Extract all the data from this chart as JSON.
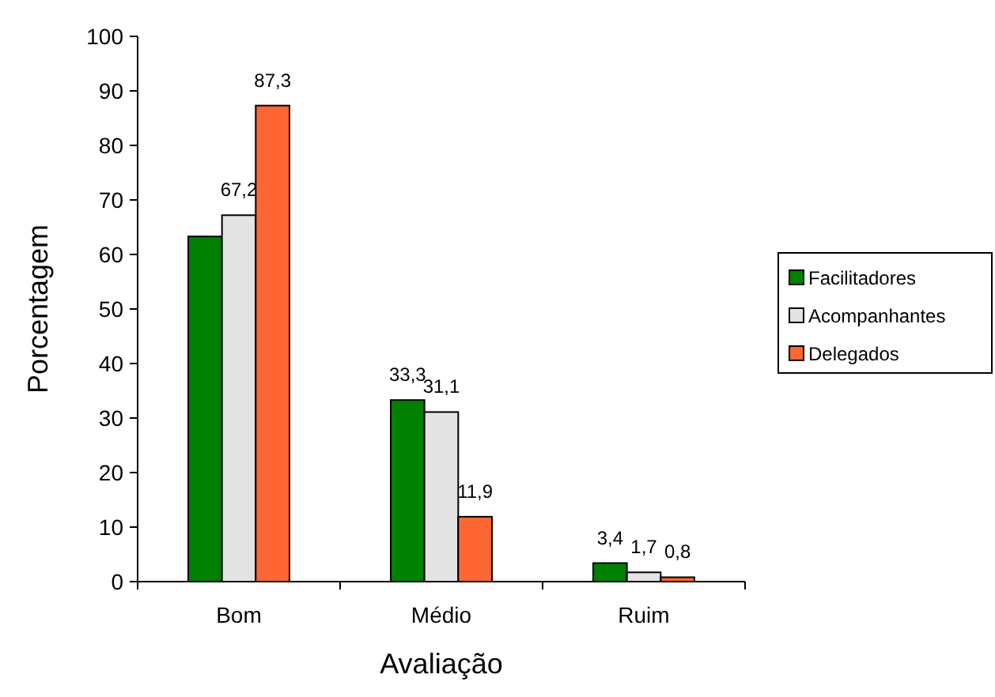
{
  "chart_data": {
    "type": "bar",
    "xlabel": "Avaliação",
    "ylabel": "Porcentagem",
    "categories": [
      "Bom",
      "Médio",
      "Ruim"
    ],
    "series": [
      {
        "name": "Facilitadores",
        "color": "#008000",
        "values": [
          63.3,
          33.3,
          3.4
        ],
        "value_labels": [
          null,
          "33,3",
          "3,4"
        ]
      },
      {
        "name": "Acompanhantes",
        "color": "#e3e3e3",
        "values": [
          67.2,
          31.1,
          1.7
        ],
        "value_labels": [
          "67,2",
          "31,1",
          "1,7"
        ]
      },
      {
        "name": "Delegados",
        "color": "#ff6633",
        "values": [
          87.3,
          11.9,
          0.8
        ],
        "value_labels": [
          "87,3",
          "11,9",
          "0,8"
        ]
      }
    ],
    "ylim": [
      0,
      100
    ],
    "yticks": [
      0,
      10,
      20,
      30,
      40,
      50,
      60,
      70,
      80,
      90,
      100
    ],
    "legend": "right",
    "grid": false
  }
}
